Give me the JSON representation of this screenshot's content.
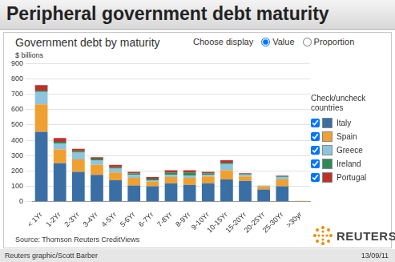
{
  "chart_data": {
    "type": "bar",
    "title": "Peripheral government debt maturity",
    "subtitle": "Government debt by maturity",
    "y_label": "$ billions",
    "controls": {
      "label": "Choose display",
      "options": [
        "Value",
        "Proportion"
      ],
      "selected": "Value"
    },
    "legend_title": "Check/uncheck countries",
    "source": "Source: Thomson Reuters CreditViews",
    "logo": "REUTERS",
    "credit": "Reuters graphic/Scott Barber",
    "date": "13/09/11",
    "categories": [
      "< 1Yr",
      "1-2Yr",
      "2-3Yr",
      "3-4Yr",
      "4-5Yr",
      "5-6Yr",
      "6-7Yr",
      "7-8Yr",
      "8-9Yr",
      "9-10Yr",
      "10-15Yr",
      "15-20Yr",
      "20-25Yr",
      "25-30Yr",
      ">30yr"
    ],
    "series": [
      {
        "name": "Italy",
        "color": "#3a6fa5",
        "values": [
          455,
          250,
          195,
          175,
          140,
          105,
          100,
          120,
          110,
          120,
          145,
          135,
          80,
          100,
          3
        ]
      },
      {
        "name": "Spain",
        "color": "#f0a030",
        "values": [
          180,
          90,
          80,
          65,
          50,
          50,
          30,
          40,
          45,
          45,
          60,
          30,
          20,
          45,
          2
        ]
      },
      {
        "name": "Greece",
        "color": "#8ec4de",
        "values": [
          80,
          40,
          45,
          30,
          25,
          20,
          10,
          15,
          15,
          10,
          40,
          10,
          5,
          15,
          0
        ]
      },
      {
        "name": "Ireland",
        "color": "#2e8b57",
        "values": [
          10,
          10,
          10,
          10,
          10,
          10,
          10,
          15,
          20,
          10,
          10,
          5,
          0,
          5,
          0
        ]
      },
      {
        "name": "Portugal",
        "color": "#c0302b",
        "values": [
          35,
          25,
          15,
          10,
          15,
          10,
          10,
          15,
          15,
          10,
          15,
          5,
          0,
          5,
          0
        ]
      }
    ],
    "ylim": [
      0,
      900
    ],
    "yticks": [
      0,
      100,
      200,
      300,
      400,
      500,
      600,
      700,
      800,
      900
    ],
    "grid": true,
    "stacked": true,
    "legend": "right"
  }
}
